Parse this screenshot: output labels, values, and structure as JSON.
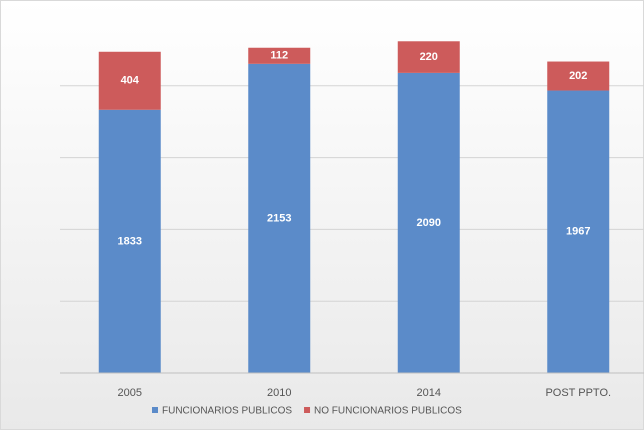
{
  "chart_data": {
    "type": "stacked_bar",
    "categories": [
      "2005",
      "2010",
      "2014",
      "POST PPTO."
    ],
    "series": [
      {
        "name": "FUNCIONARIOS PUBLICOS",
        "color": "#5b8bc9",
        "values": [
          1833,
          2153,
          2090,
          1967
        ]
      },
      {
        "name": "NO FUNCIONARIOS PUBLICOS",
        "color": "#cd5b5b",
        "values": [
          404,
          112,
          220,
          202
        ]
      }
    ],
    "ylim": [
      0,
      2500
    ],
    "yticks": [
      0,
      500,
      1000,
      1500,
      2000
    ],
    "grid": true,
    "legend": "bottom"
  }
}
